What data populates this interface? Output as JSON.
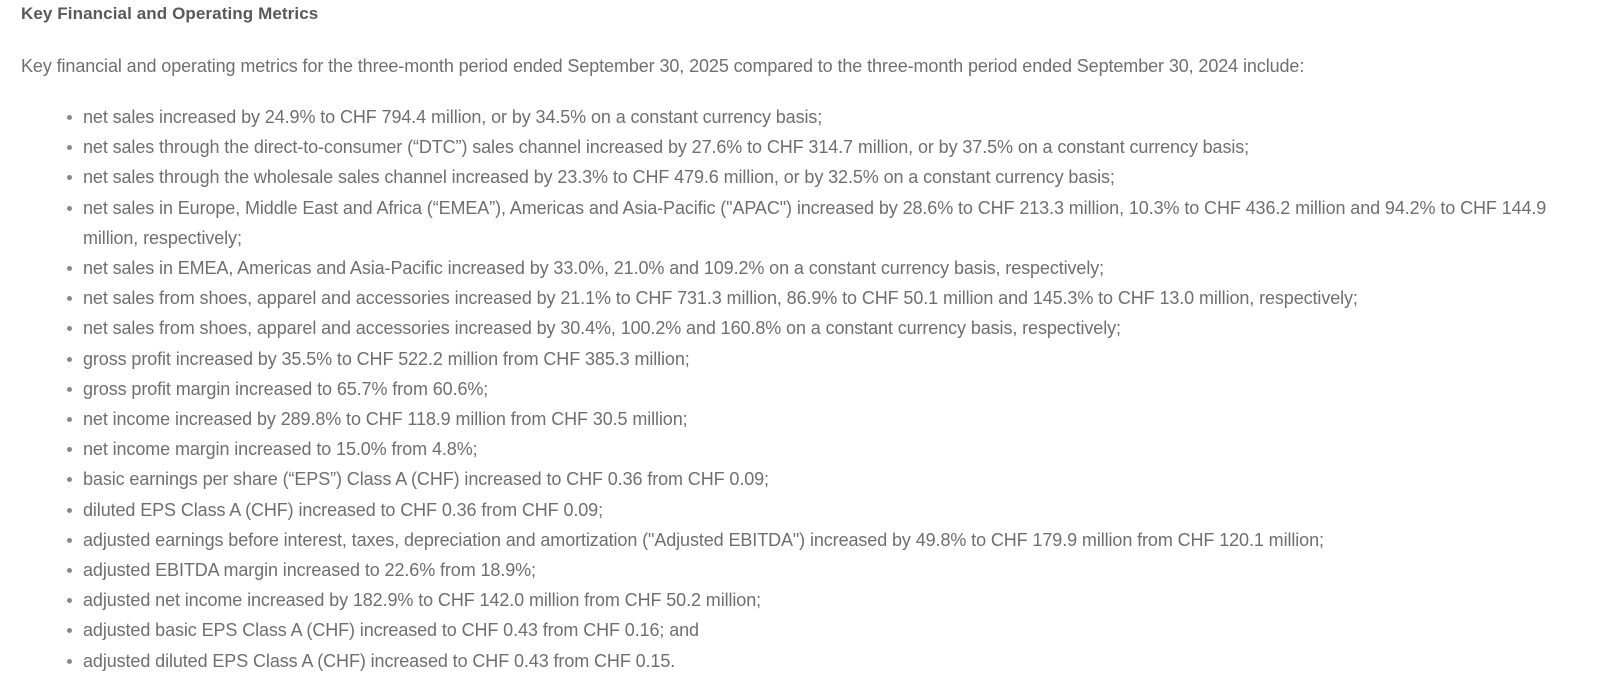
{
  "page": {
    "heading": "Key Financial and Operating Metrics",
    "intro": "Key financial and operating metrics for the three-month period ended September 30, 2025 compared to the three-month period ended September 30, 2024 include:",
    "bullets": [
      "net sales increased by 24.9% to CHF 794.4 million, or by 34.5% on a constant currency basis;",
      "net sales through the direct-to-consumer (“DTC”) sales channel increased by 27.6% to CHF 314.7 million, or by 37.5% on a constant currency basis;",
      "net sales through the wholesale sales channel increased by 23.3% to CHF 479.6 million, or by 32.5% on a constant currency basis;",
      "net sales in Europe, Middle East and Africa (“EMEA”), Americas and Asia-Pacific (\"APAC\") increased by 28.6% to CHF 213.3 million, 10.3% to CHF 436.2 million and 94.2% to CHF 144.9 million, respectively;",
      "net sales in EMEA, Americas and Asia-Pacific increased by 33.0%, 21.0% and 109.2% on a constant currency basis, respectively;",
      "net sales from shoes, apparel and accessories increased by 21.1% to CHF 731.3 million, 86.9% to CHF 50.1 million and 145.3% to CHF 13.0 million, respectively;",
      "net sales from shoes, apparel and accessories increased by 30.4%, 100.2% and 160.8% on a constant currency basis, respectively;",
      "gross profit increased by 35.5% to CHF 522.2 million from CHF 385.3 million;",
      "gross profit margin increased to 65.7% from 60.6%;",
      "net income increased by 289.8% to CHF 118.9 million from CHF 30.5 million;",
      "net income margin increased to 15.0% from 4.8%;",
      "basic earnings per share (“EPS”) Class A (CHF) increased to CHF 0.36 from CHF 0.09;",
      "diluted EPS Class A (CHF) increased to CHF 0.36 from CHF 0.09;",
      "adjusted earnings before interest, taxes, depreciation and amortization (\"Adjusted EBITDA\") increased by 49.8% to CHF 179.9 million from CHF 120.1 million;",
      "adjusted EBITDA margin increased to 22.6% from 18.9%;",
      "adjusted net income increased by 182.9% to CHF 142.0 million from CHF 50.2 million;",
      "adjusted basic EPS Class A (CHF) increased to CHF 0.43 from CHF 0.16; and",
      "adjusted diluted EPS Class A (CHF) increased to CHF 0.43 from CHF 0.15."
    ],
    "text_color": "#6e6f72",
    "heading_color": "#58595b",
    "background_color": "#ffffff"
  }
}
